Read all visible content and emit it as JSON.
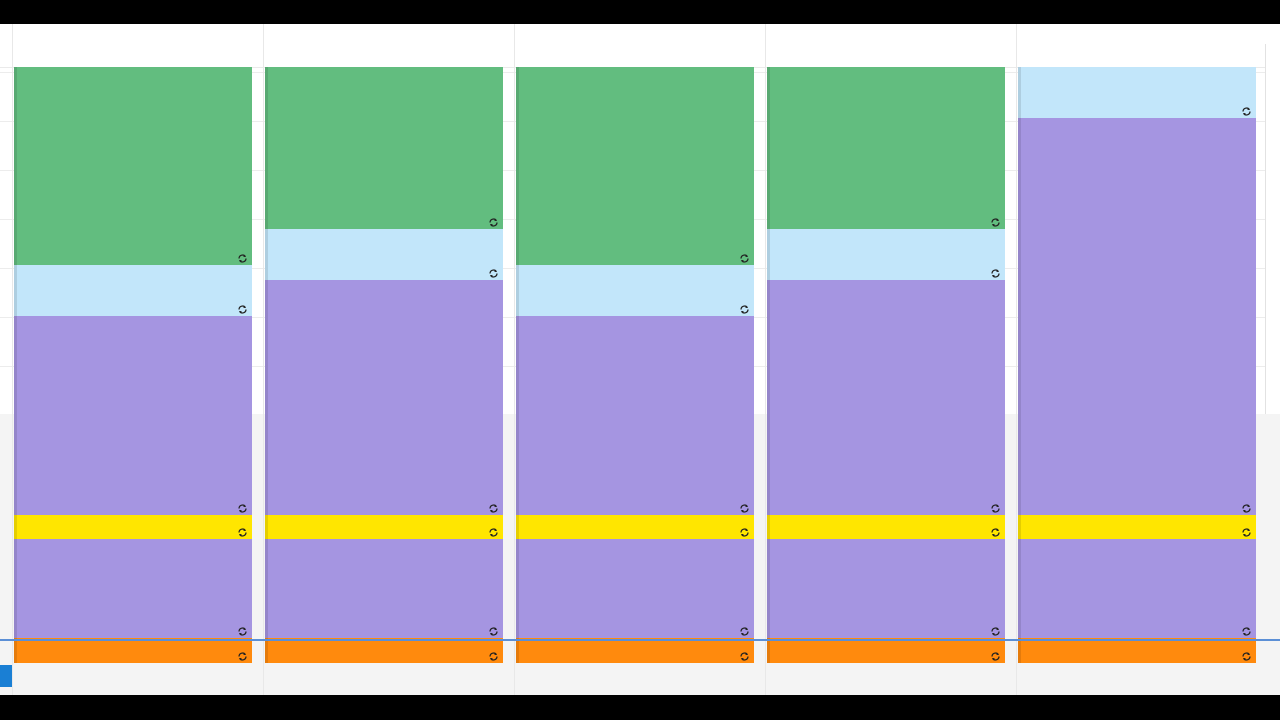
{
  "colors": {
    "green": "#62bd7f",
    "light_blue": "#c2e6fa",
    "purple": "#a595e1",
    "yellow": "#ffe600",
    "orange": "#ff8a0d",
    "now_indicator": "#1a7fd4"
  },
  "icons": {
    "event_status": "sync-icon"
  },
  "days": [
    {
      "events": [
        "green",
        "light_blue",
        "purple",
        "yellow",
        "purple",
        "orange"
      ]
    },
    {
      "events": [
        "green",
        "light_blue",
        "purple",
        "yellow",
        "purple",
        "orange"
      ]
    },
    {
      "events": [
        "green",
        "light_blue",
        "purple",
        "yellow",
        "purple",
        "orange"
      ]
    },
    {
      "events": [
        "green",
        "light_blue",
        "purple",
        "yellow",
        "purple",
        "orange"
      ]
    },
    {
      "events": [
        "light_blue",
        "purple",
        "yellow",
        "purple",
        "orange"
      ]
    }
  ]
}
